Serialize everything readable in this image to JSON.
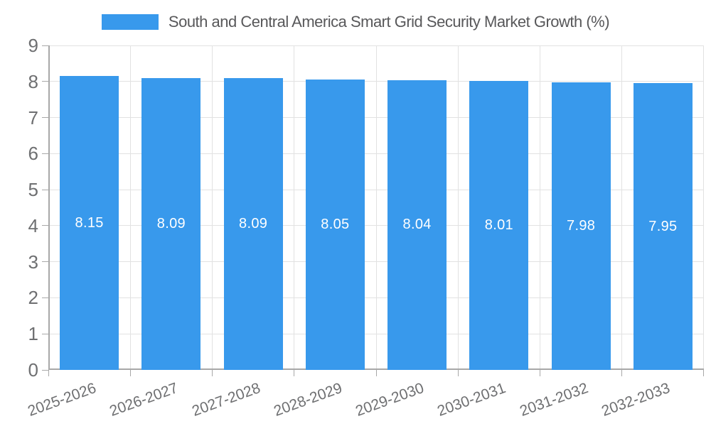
{
  "chart_data": {
    "type": "bar",
    "title": "South and Central America Smart Grid Security Market Growth (%)",
    "legend": {
      "label": "South and Central America Smart Grid Security Market Growth (%)",
      "position": "top"
    },
    "categories": [
      "2025-2026",
      "2026-2027",
      "2027-2028",
      "2028-2029",
      "2029-2030",
      "2030-2031",
      "2031-2032",
      "2032-2033"
    ],
    "values": [
      8.15,
      8.09,
      8.09,
      8.05,
      8.04,
      8.01,
      7.98,
      7.95
    ],
    "value_labels": [
      "8.15",
      "8.09",
      "8.09",
      "8.05",
      "8.04",
      "8.01",
      "7.98",
      "7.95"
    ],
    "xlabel": "",
    "ylabel": "",
    "ylim": [
      0,
      9
    ],
    "y_ticks": [
      "0",
      "1",
      "2",
      "3",
      "4",
      "5",
      "6",
      "7",
      "8",
      "9"
    ],
    "grid": true,
    "x_label_rotation_deg": -20,
    "colors": {
      "bar": "#3899ec",
      "value_label": "#ffffff",
      "axis_text": "#6e6f71",
      "legend_text": "#58585a",
      "grid_line": "#e2e2e2",
      "axis_line": "#a8a8a8",
      "background": "#ffffff"
    }
  }
}
